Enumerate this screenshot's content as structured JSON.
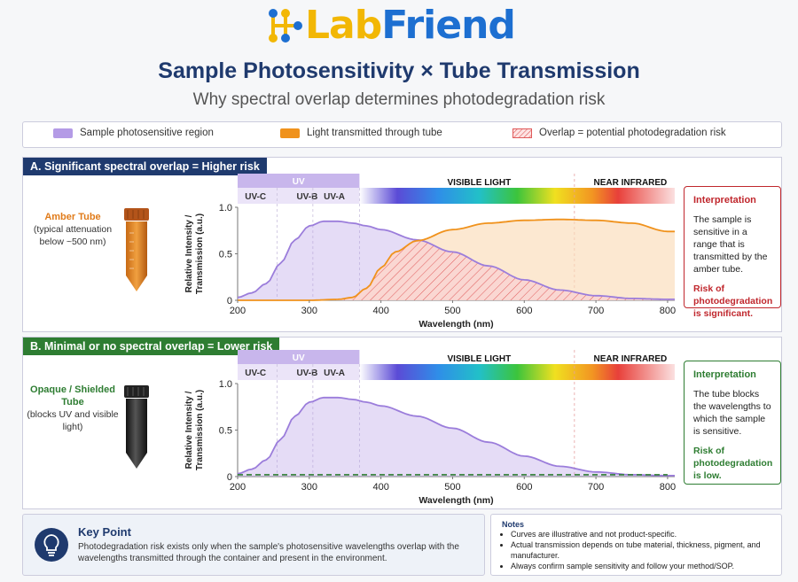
{
  "logo": {
    "part1": "Lab",
    "part2": "Friend",
    "icon": "lab-network-icon"
  },
  "title": "Sample Photosensitivity × Tube Transmission",
  "subtitle": "Why spectral overlap determines photodegradation risk",
  "legend": [
    {
      "label": "Sample photosensitive region",
      "color": "#b49be6"
    },
    {
      "label": "Light transmitted through tube",
      "color": "#f0921c"
    },
    {
      "label": "Overlap = potential photodegradation risk",
      "color": "#e05a5a"
    }
  ],
  "panel_a": {
    "header": "A. Significant spectral overlap = Higher risk",
    "header_color": "#1f3a6e",
    "tube_name": "Amber Tube",
    "tube_note": "(typical attenuation below ~500 nm)",
    "interp_title": "Interpretation",
    "interp_text": "The sample is sensitive in a range that is transmitted by the amber tube.",
    "risk_text": "Risk of photodegradation is significant.",
    "accent": "#c0272d"
  },
  "panel_b": {
    "header": "B. Minimal or no spectral overlap = Lower risk",
    "header_color": "#2e7d32",
    "tube_name": "Opaque / Shielded Tube",
    "tube_note": "(blocks UV and visible light)",
    "interp_title": "Interpretation",
    "interp_text": "The tube blocks the wavelengths to which the sample is sensitive.",
    "risk_text": "Risk of photodegradation is low.",
    "accent": "#2e7d32"
  },
  "bands": {
    "uv": "UV",
    "uvc": "UV-C",
    "uvb": "UV-B",
    "uva": "UV-A",
    "visible": "VISIBLE LIGHT",
    "nir": "NEAR INFRARED"
  },
  "key_point": {
    "title": "Key Point",
    "text": "Photodegradation risk exists only when the sample's photosensitive wavelengths overlap with the wavelengths transmitted through the container and present in the environment.",
    "icon": "lightbulb-icon"
  },
  "notes": {
    "title": "Notes",
    "items": [
      "Curves are illustrative and not product-specific.",
      "Actual transmission depends on tube material, thickness, pigment, and manufacturer.",
      "Always confirm sample sensitivity and follow your method/SOP."
    ]
  },
  "chart_data": [
    {
      "type": "area",
      "title": "A. Significant spectral overlap = Higher risk",
      "xlabel": "Wavelength (nm)",
      "ylabel": "Relative Intensity / Transmission (a.u.)",
      "xlim": [
        200,
        810
      ],
      "ylim": [
        0,
        1.0
      ],
      "xticks": [
        200,
        300,
        400,
        500,
        600,
        700,
        800
      ],
      "yticks": [
        "0",
        "0.5",
        "1.0"
      ],
      "series": [
        {
          "name": "Sample photosensitive region",
          "color": "#b49be6",
          "x": [
            200,
            220,
            240,
            260,
            280,
            300,
            320,
            340,
            360,
            380,
            400,
            450,
            500,
            550,
            600,
            650,
            700,
            750,
            800
          ],
          "y": [
            0.03,
            0.08,
            0.18,
            0.4,
            0.65,
            0.8,
            0.85,
            0.85,
            0.83,
            0.8,
            0.76,
            0.65,
            0.52,
            0.37,
            0.22,
            0.11,
            0.05,
            0.02,
            0.01
          ]
        },
        {
          "name": "Light transmitted through tube",
          "color": "#f0921c",
          "x": [
            200,
            300,
            340,
            360,
            380,
            400,
            420,
            450,
            500,
            550,
            600,
            650,
            700,
            750,
            800
          ],
          "y": [
            0.0,
            0.0,
            0.01,
            0.03,
            0.13,
            0.35,
            0.52,
            0.64,
            0.76,
            0.83,
            0.86,
            0.87,
            0.86,
            0.83,
            0.74
          ]
        }
      ]
    },
    {
      "type": "area",
      "title": "B. Minimal or no spectral overlap = Lower risk",
      "xlabel": "Wavelength (nm)",
      "ylabel": "Relative Intensity / Transmission (a.u.)",
      "xlim": [
        200,
        810
      ],
      "ylim": [
        0,
        1.0
      ],
      "xticks": [
        200,
        300,
        400,
        500,
        600,
        700,
        800
      ],
      "yticks": [
        "0",
        "0.5",
        "1.0"
      ],
      "series": [
        {
          "name": "Sample photosensitive region",
          "color": "#b49be6",
          "x": [
            200,
            220,
            240,
            260,
            280,
            300,
            320,
            340,
            360,
            380,
            400,
            450,
            500,
            550,
            600,
            650,
            700,
            750,
            800
          ],
          "y": [
            0.03,
            0.08,
            0.18,
            0.4,
            0.65,
            0.8,
            0.85,
            0.85,
            0.83,
            0.8,
            0.76,
            0.65,
            0.52,
            0.37,
            0.22,
            0.11,
            0.05,
            0.02,
            0.01
          ]
        },
        {
          "name": "Light transmitted through tube",
          "color": "#2e7d32",
          "x": [
            200,
            800
          ],
          "y": [
            0.02,
            0.02
          ]
        }
      ]
    }
  ]
}
